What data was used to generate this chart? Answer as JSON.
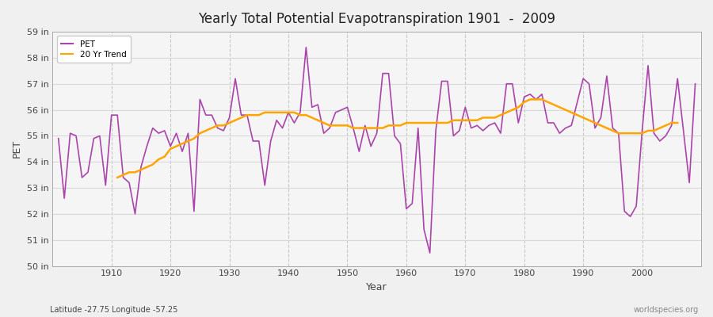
{
  "title": "Yearly Total Potential Evapotranspiration 1901  -  2009",
  "xlabel": "Year",
  "ylabel": "PET",
  "footnote_left": "Latitude -27.75 Longitude -57.25",
  "footnote_right": "worldspecies.org",
  "ylim": [
    50,
    59
  ],
  "yticks": [
    50,
    51,
    52,
    53,
    54,
    55,
    56,
    57,
    58,
    59
  ],
  "ytick_labels": [
    "50 in",
    "51 in",
    "52 in",
    "53 in",
    "54 in",
    "55 in",
    "56 in",
    "57 in",
    "58 in",
    "59 in"
  ],
  "xticks": [
    1910,
    1920,
    1930,
    1940,
    1950,
    1960,
    1970,
    1980,
    1990,
    2000
  ],
  "pet_color": "#AA44AA",
  "trend_color": "#FFA500",
  "background_color": "#F0F0F0",
  "plot_bg_color": "#F5F5F5",
  "grid_color_h": "#D8D8D8",
  "grid_color_v": "#C8C8C8",
  "years": [
    1901,
    1902,
    1903,
    1904,
    1905,
    1906,
    1907,
    1908,
    1909,
    1910,
    1911,
    1912,
    1913,
    1914,
    1915,
    1916,
    1917,
    1918,
    1919,
    1920,
    1921,
    1922,
    1923,
    1924,
    1925,
    1926,
    1927,
    1928,
    1929,
    1930,
    1931,
    1932,
    1933,
    1934,
    1935,
    1936,
    1937,
    1938,
    1939,
    1940,
    1941,
    1942,
    1943,
    1944,
    1945,
    1946,
    1947,
    1948,
    1949,
    1950,
    1951,
    1952,
    1953,
    1954,
    1955,
    1956,
    1957,
    1958,
    1959,
    1960,
    1961,
    1962,
    1963,
    1964,
    1965,
    1966,
    1967,
    1968,
    1969,
    1970,
    1971,
    1972,
    1973,
    1974,
    1975,
    1976,
    1977,
    1978,
    1979,
    1980,
    1981,
    1982,
    1983,
    1984,
    1985,
    1986,
    1987,
    1988,
    1989,
    1990,
    1991,
    1992,
    1993,
    1994,
    1995,
    1996,
    1997,
    1998,
    1999,
    2000,
    2001,
    2002,
    2003,
    2004,
    2005,
    2006,
    2007,
    2008,
    2009
  ],
  "pet": [
    54.9,
    52.6,
    55.1,
    55.0,
    53.4,
    53.6,
    54.9,
    55.0,
    53.1,
    55.8,
    55.8,
    53.4,
    53.2,
    52.0,
    53.8,
    54.6,
    55.3,
    55.1,
    55.2,
    54.6,
    55.1,
    54.4,
    55.1,
    52.1,
    56.4,
    55.8,
    55.8,
    55.3,
    55.2,
    55.7,
    57.2,
    55.8,
    55.8,
    54.8,
    54.8,
    53.1,
    54.8,
    55.6,
    55.3,
    55.9,
    55.5,
    55.9,
    58.4,
    56.1,
    56.2,
    55.1,
    55.3,
    55.9,
    56.0,
    56.1,
    55.3,
    54.4,
    55.4,
    54.6,
    55.1,
    57.4,
    57.4,
    55.0,
    54.7,
    52.2,
    52.4,
    55.3,
    51.4,
    50.5,
    55.2,
    57.1,
    57.1,
    55.0,
    55.2,
    56.1,
    55.3,
    55.4,
    55.2,
    55.4,
    55.5,
    55.1,
    57.0,
    57.0,
    55.5,
    56.5,
    56.6,
    56.4,
    56.6,
    55.5,
    55.5,
    55.1,
    55.3,
    55.4,
    56.3,
    57.2,
    57.0,
    55.3,
    55.7,
    57.3,
    55.3,
    55.1,
    52.1,
    51.9,
    52.3,
    55.2,
    57.7,
    55.1,
    54.8,
    55.0,
    55.4,
    57.2,
    55.2,
    53.2,
    57.0
  ],
  "trend": [
    null,
    null,
    null,
    null,
    null,
    null,
    null,
    null,
    null,
    null,
    53.4,
    53.5,
    53.6,
    53.6,
    53.7,
    53.8,
    53.9,
    54.1,
    54.2,
    54.5,
    54.6,
    54.7,
    54.8,
    54.9,
    55.1,
    55.2,
    55.3,
    55.4,
    55.4,
    55.5,
    55.6,
    55.7,
    55.8,
    55.8,
    55.8,
    55.9,
    55.9,
    55.9,
    55.9,
    55.9,
    55.9,
    55.8,
    55.8,
    55.7,
    55.6,
    55.5,
    55.4,
    55.4,
    55.4,
    55.4,
    55.3,
    55.3,
    55.3,
    55.3,
    55.3,
    55.3,
    55.4,
    55.4,
    55.4,
    55.5,
    55.5,
    55.5,
    55.5,
    55.5,
    55.5,
    55.5,
    55.5,
    55.6,
    55.6,
    55.6,
    55.6,
    55.6,
    55.7,
    55.7,
    55.7,
    55.8,
    55.9,
    56.0,
    56.1,
    56.3,
    56.4,
    56.4,
    56.4,
    56.3,
    56.2,
    56.1,
    56.0,
    55.9,
    55.8,
    55.7,
    55.6,
    55.5,
    55.4,
    55.3,
    55.2,
    55.1,
    55.1,
    55.1,
    55.1,
    55.1,
    55.2,
    55.2,
    55.3,
    55.4,
    55.5,
    55.5,
    null,
    null,
    null
  ]
}
